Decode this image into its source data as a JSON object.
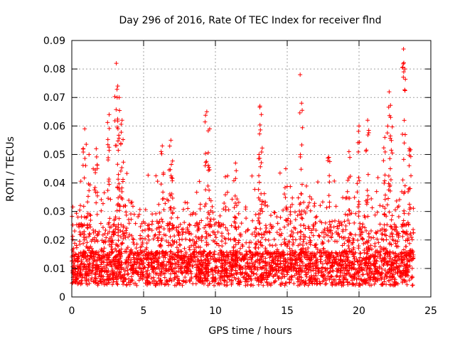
{
  "chart_data": {
    "type": "scatter",
    "title": "Day 296 of 2016, Rate Of TEC Index for receiver flnd",
    "xlabel": "GPS time / hours",
    "ylabel": "ROTI / TECUs",
    "xlim": [
      0,
      25
    ],
    "ylim": [
      0,
      0.09
    ],
    "xticks": [
      0,
      5,
      10,
      15,
      20,
      25
    ],
    "yticks": [
      0,
      0.01,
      0.02,
      0.03,
      0.04,
      0.05,
      0.06,
      0.07,
      0.08,
      0.09
    ],
    "xtick_labels": [
      "0",
      "5",
      "10",
      "15",
      "20",
      "25"
    ],
    "ytick_labels": [
      "0",
      "0.01",
      "0.02",
      "0.03",
      "0.04",
      "0.05",
      "0.06",
      "0.07",
      "0.08",
      "0.09"
    ],
    "grid": true,
    "marker": "+",
    "marker_color": "#ff0000",
    "series": [
      {
        "name": "ROTI",
        "note": "dense scatter of ROTI samples from 0 to ~23.8 h; core band ~0.005–0.03 TECU, notable peaks listed",
        "x": [
          0.9,
          1.2,
          1.7,
          2.6,
          3.1,
          3.2,
          3.3,
          3.5,
          6.3,
          6.9,
          9.4,
          9.6,
          11.4,
          13.1,
          13.2,
          14.9,
          15.9,
          16.0,
          17.9,
          19.3,
          20.0,
          20.6,
          21.8,
          22.1,
          22.2,
          23.1,
          23.2,
          23.5
        ],
        "y": [
          0.059,
          0.05,
          0.052,
          0.064,
          0.082,
          0.074,
          0.07,
          0.062,
          0.053,
          0.055,
          0.065,
          0.059,
          0.047,
          0.067,
          0.064,
          0.045,
          0.078,
          0.068,
          0.049,
          0.051,
          0.06,
          0.062,
          0.056,
          0.072,
          0.063,
          0.087,
          0.08,
          0.052
        ]
      }
    ]
  }
}
